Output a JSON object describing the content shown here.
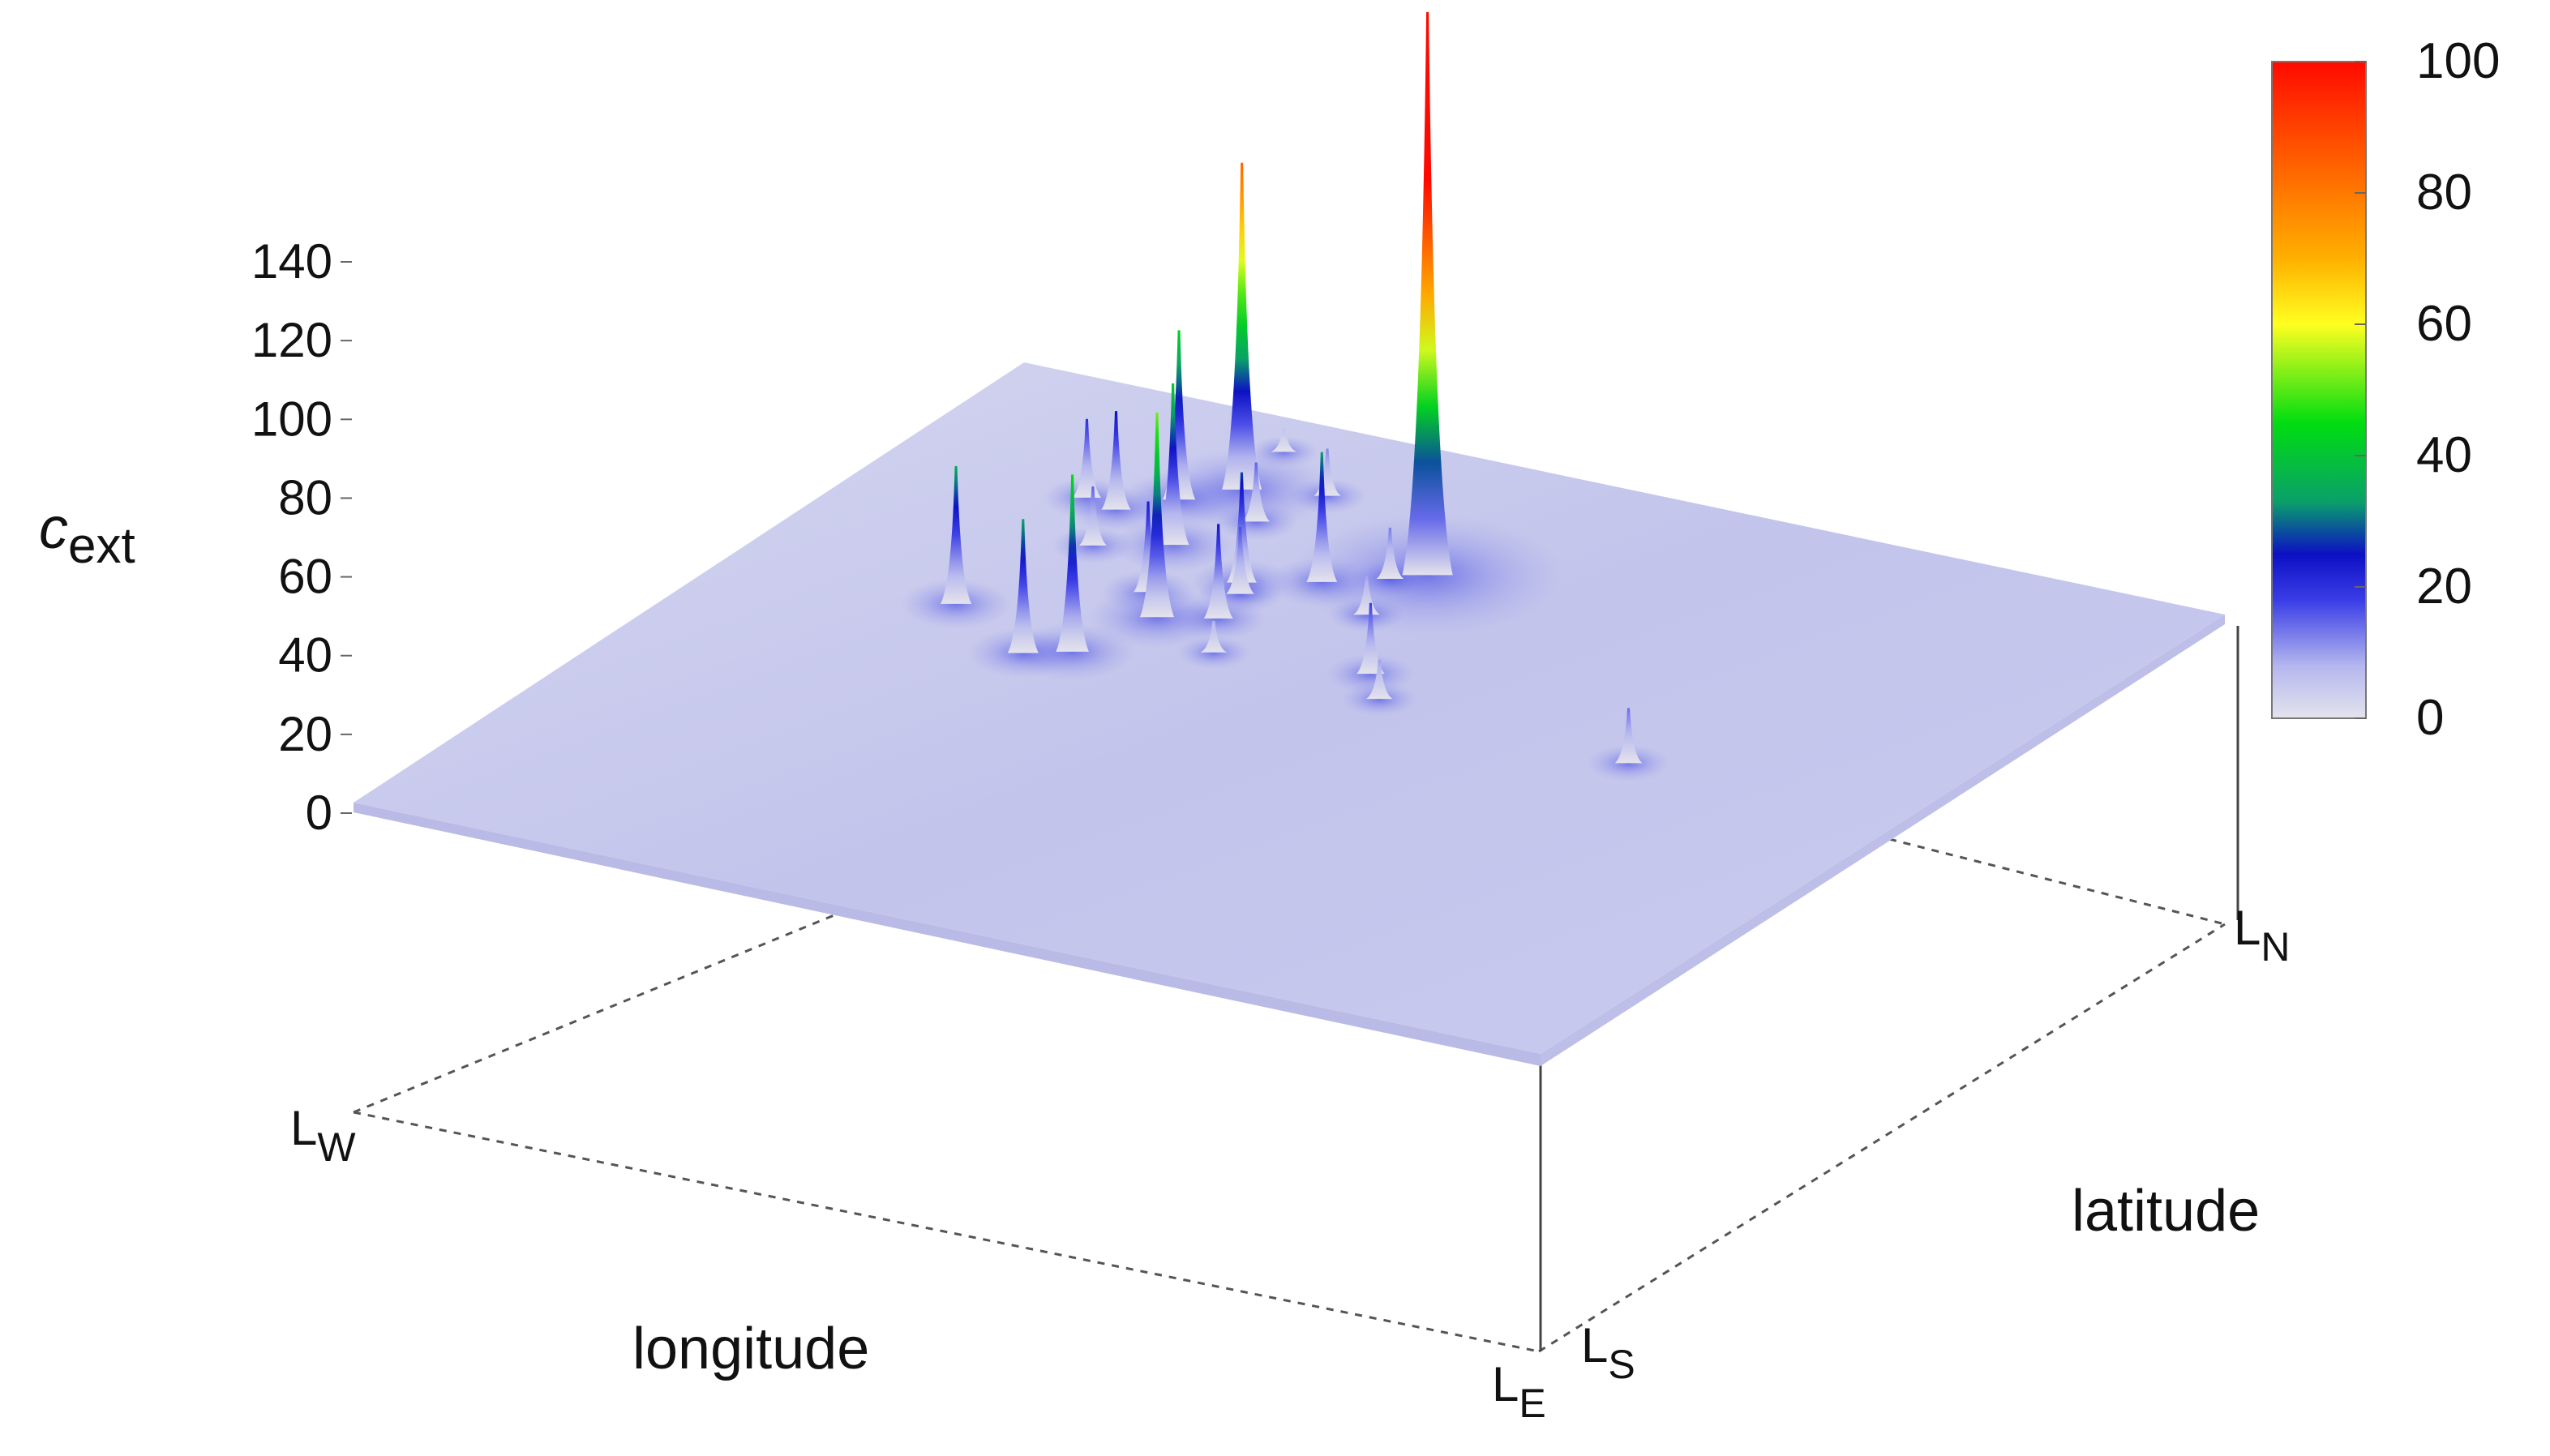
{
  "chart_data": {
    "type": "surface3d",
    "zlabel_main": "c",
    "zlabel_sub": "ext",
    "xlabel": "longitude",
    "ylabel": "latitude",
    "corner_labels": {
      "west": {
        "main": "L",
        "sub": "W"
      },
      "east": {
        "main": "L",
        "sub": "E"
      },
      "south": {
        "main": "L",
        "sub": "S"
      },
      "north": {
        "main": "L",
        "sub": "N"
      }
    },
    "zticks": [
      "0",
      "20",
      "40",
      "60",
      "80",
      "100",
      "120",
      "140"
    ],
    "zlim": [
      0,
      140
    ],
    "colorbar": {
      "ticks": [
        "0",
        "20",
        "40",
        "60",
        "80",
        "100"
      ],
      "range": [
        0,
        100
      ],
      "colormap": [
        {
          "v": 0,
          "color": "#e4e3ec"
        },
        {
          "v": 8,
          "color": "#b4b6ee"
        },
        {
          "v": 18,
          "color": "#3a3de6"
        },
        {
          "v": 25,
          "color": "#0c10c4"
        },
        {
          "v": 33,
          "color": "#0aa06a"
        },
        {
          "v": 45,
          "color": "#00dd10"
        },
        {
          "v": 60,
          "color": "#ffff20"
        },
        {
          "v": 70,
          "color": "#ffb000"
        },
        {
          "v": 100,
          "color": "#ff0a00"
        }
      ]
    },
    "surface_color": "#c4c6ec",
    "grid": false,
    "peaks": [
      {
        "lon": 0.46,
        "lat": 0.22,
        "z": 143
      },
      {
        "lon": 0.26,
        "lat": 0.14,
        "z": 83
      },
      {
        "lon": 0.33,
        "lat": 0.39,
        "z": 52
      },
      {
        "lon": 0.31,
        "lat": 0.48,
        "z": 45
      },
      {
        "lon": 0.27,
        "lat": 0.26,
        "z": 41
      },
      {
        "lon": 0.23,
        "lat": 0.18,
        "z": 43
      },
      {
        "lon": 0.4,
        "lat": 0.27,
        "z": 33
      },
      {
        "lon": 0.35,
        "lat": 0.3,
        "z": 28
      },
      {
        "lon": 0.37,
        "lat": 0.37,
        "z": 24
      },
      {
        "lon": 0.3,
        "lat": 0.35,
        "z": 23
      },
      {
        "lon": 0.2,
        "lat": 0.22,
        "z": 25
      },
      {
        "lon": 0.19,
        "lat": 0.44,
        "z": 35
      },
      {
        "lon": 0.28,
        "lat": 0.5,
        "z": 34
      },
      {
        "lon": 0.52,
        "lat": 0.41,
        "z": 18
      },
      {
        "lon": 0.3,
        "lat": 0.19,
        "z": 15
      },
      {
        "lon": 0.36,
        "lat": 0.32,
        "z": 17
      },
      {
        "lon": 0.17,
        "lat": 0.21,
        "z": 20
      },
      {
        "lon": 0.22,
        "lat": 0.29,
        "z": 15
      },
      {
        "lon": 0.32,
        "lat": 0.12,
        "z": 12
      },
      {
        "lon": 0.46,
        "lat": 0.31,
        "z": 10
      },
      {
        "lon": 0.44,
        "lat": 0.24,
        "z": 13
      },
      {
        "lon": 0.55,
        "lat": 0.45,
        "z": 10
      },
      {
        "lon": 0.77,
        "lat": 0.47,
        "z": 14
      },
      {
        "lon": 0.4,
        "lat": 0.43,
        "z": 8
      },
      {
        "lon": 0.25,
        "lat": 0.06,
        "z": 6
      }
    ]
  }
}
